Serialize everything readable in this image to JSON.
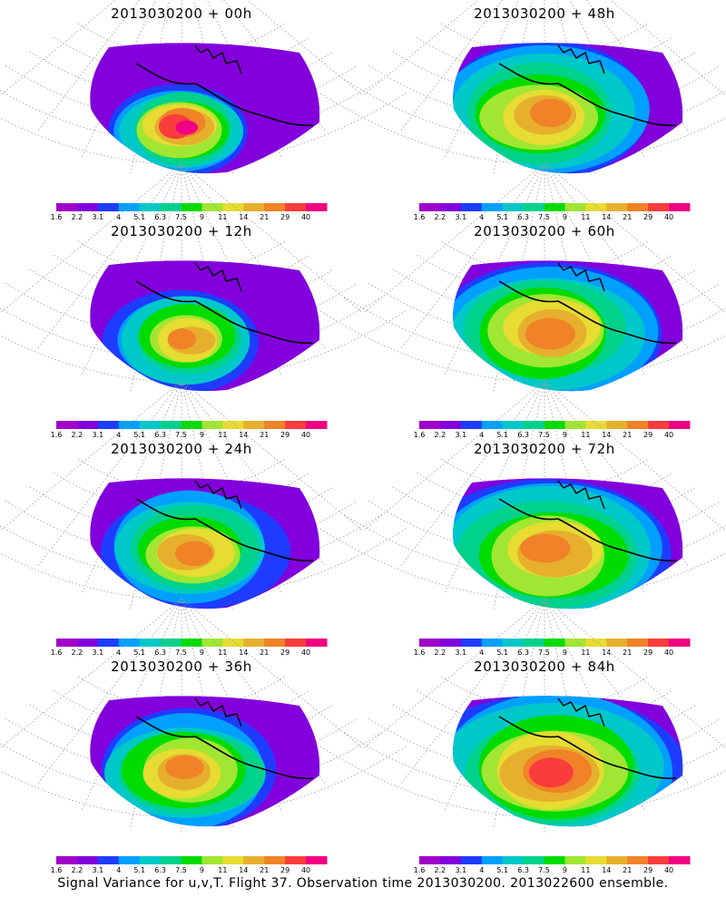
{
  "footer": "Signal Variance for u,v,T. Flight 37. Observation time 2013030200. 2013022600 ensemble.",
  "colorbar": {
    "tick_labels": [
      "1.6",
      "2.2",
      "3.1",
      "4",
      "5.1",
      "6.3",
      "7.5",
      "9",
      "11",
      "14",
      "21",
      "29",
      "40"
    ],
    "colors": [
      "#a000c8",
      "#8200dc",
      "#1e3cff",
      "#00a0ff",
      "#00c8c8",
      "#00d28c",
      "#00dc00",
      "#a0e632",
      "#e6dc32",
      "#e6af2d",
      "#f08228",
      "#fa3c3c",
      "#f00082"
    ]
  },
  "chart_data": [
    {
      "type": "heatmap",
      "title": "2013030200 + 00h"
    },
    {
      "type": "heatmap",
      "title": "2013030200 + 12h"
    },
    {
      "type": "heatmap",
      "title": "2013030200 + 24h"
    },
    {
      "type": "heatmap",
      "title": "2013030200 + 36h"
    },
    {
      "type": "heatmap",
      "title": "2013030200 + 48h"
    },
    {
      "type": "heatmap",
      "title": "2013030200 + 60h"
    },
    {
      "type": "heatmap",
      "title": "2013030200 + 72h"
    },
    {
      "type": "heatmap",
      "title": "2013030200 + 84h"
    }
  ]
}
